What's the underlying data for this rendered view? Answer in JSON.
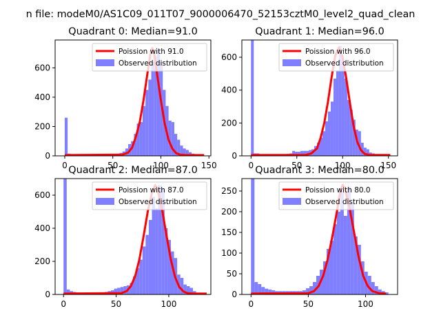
{
  "figure": {
    "suptitle": "n file: modeM0/AS1C09_011T07_9000006470_52153cztM0_level2_quad_clean"
  },
  "colors": {
    "hist": "#7f7fff",
    "fit": "#ff0000",
    "axes": "#000000",
    "background": "#ffffff"
  },
  "chart_data": [
    {
      "type": "bar",
      "title": "Quadrant 0: Median=91.0",
      "median": 91.0,
      "xlim": [
        -10,
        152
      ],
      "ylim": [
        0,
        790
      ],
      "xticks": [
        0,
        50,
        100,
        150
      ],
      "yticks": [
        0,
        200,
        400,
        600
      ],
      "legend": [
        "Poission with 91.0",
        "Observed distribution"
      ],
      "legend_position": "top-right",
      "bin_width": 3,
      "bins": [
        [
          0,
          260
        ],
        [
          3,
          15
        ],
        [
          6,
          10
        ],
        [
          9,
          6
        ],
        [
          12,
          5
        ],
        [
          15,
          5
        ],
        [
          18,
          4
        ],
        [
          21,
          4
        ],
        [
          24,
          4
        ],
        [
          27,
          4
        ],
        [
          30,
          5
        ],
        [
          33,
          5
        ],
        [
          36,
          5
        ],
        [
          39,
          6
        ],
        [
          42,
          6
        ],
        [
          45,
          8
        ],
        [
          48,
          10
        ],
        [
          51,
          12
        ],
        [
          54,
          15
        ],
        [
          57,
          20
        ],
        [
          60,
          30
        ],
        [
          63,
          50
        ],
        [
          66,
          80
        ],
        [
          69,
          100
        ],
        [
          72,
          150
        ],
        [
          75,
          220
        ],
        [
          78,
          230
        ],
        [
          81,
          340
        ],
        [
          84,
          450
        ],
        [
          87,
          520
        ],
        [
          90,
          640
        ],
        [
          93,
          680
        ],
        [
          96,
          720
        ],
        [
          99,
          640
        ],
        [
          102,
          450
        ],
        [
          105,
          340
        ],
        [
          108,
          240
        ],
        [
          111,
          230
        ],
        [
          114,
          150
        ],
        [
          117,
          110
        ],
        [
          120,
          70
        ],
        [
          123,
          50
        ],
        [
          126,
          40
        ],
        [
          129,
          25
        ],
        [
          132,
          15
        ],
        [
          135,
          10
        ],
        [
          138,
          8
        ],
        [
          141,
          5
        ]
      ],
      "fit_curve": [
        [
          0,
          5
        ],
        [
          60,
          8
        ],
        [
          66,
          22
        ],
        [
          70,
          55
        ],
        [
          74,
          130
        ],
        [
          78,
          230
        ],
        [
          82,
          380
        ],
        [
          86,
          560
        ],
        [
          89,
          690
        ],
        [
          91,
          735
        ],
        [
          93,
          700
        ],
        [
          96,
          560
        ],
        [
          100,
          380
        ],
        [
          104,
          220
        ],
        [
          108,
          110
        ],
        [
          112,
          48
        ],
        [
          116,
          18
        ],
        [
          120,
          8
        ],
        [
          126,
          5
        ],
        [
          145,
          5
        ]
      ]
    },
    {
      "type": "bar",
      "title": "Quadrant 1: Median=96.0",
      "median": 96.0,
      "xlim": [
        -10,
        160
      ],
      "ylim": [
        0,
        705
      ],
      "xticks": [
        0,
        50,
        100,
        150
      ],
      "yticks": [
        0,
        200,
        400,
        600
      ],
      "legend": [
        "Poission with 96.0",
        "Observed distribution"
      ],
      "legend_position": "top-right",
      "bin_width": 3,
      "bins": [
        [
          0,
          705
        ],
        [
          3,
          15
        ],
        [
          6,
          15
        ],
        [
          9,
          10
        ],
        [
          12,
          8
        ],
        [
          15,
          8
        ],
        [
          18,
          6
        ],
        [
          21,
          6
        ],
        [
          24,
          6
        ],
        [
          27,
          5
        ],
        [
          30,
          6
        ],
        [
          33,
          8
        ],
        [
          36,
          10
        ],
        [
          39,
          12
        ],
        [
          42,
          15
        ],
        [
          45,
          30
        ],
        [
          48,
          25
        ],
        [
          51,
          25
        ],
        [
          54,
          30
        ],
        [
          57,
          30
        ],
        [
          60,
          30
        ],
        [
          63,
          35
        ],
        [
          66,
          40
        ],
        [
          69,
          60
        ],
        [
          72,
          80
        ],
        [
          75,
          110
        ],
        [
          78,
          150
        ],
        [
          81,
          210
        ],
        [
          84,
          270
        ],
        [
          87,
          330
        ],
        [
          90,
          470
        ],
        [
          93,
          520
        ],
        [
          96,
          670
        ],
        [
          99,
          590
        ],
        [
          102,
          470
        ],
        [
          105,
          340
        ],
        [
          108,
          280
        ],
        [
          111,
          220
        ],
        [
          114,
          160
        ],
        [
          117,
          150
        ],
        [
          120,
          80
        ],
        [
          123,
          50
        ],
        [
          126,
          40
        ],
        [
          129,
          20
        ],
        [
          132,
          15
        ],
        [
          135,
          10
        ],
        [
          138,
          8
        ],
        [
          141,
          5
        ],
        [
          144,
          5
        ],
        [
          147,
          3
        ],
        [
          150,
          3
        ]
      ],
      "fit_curve": [
        [
          0,
          5
        ],
        [
          60,
          6
        ],
        [
          66,
          15
        ],
        [
          72,
          45
        ],
        [
          76,
          110
        ],
        [
          80,
          200
        ],
        [
          84,
          330
        ],
        [
          88,
          480
        ],
        [
          92,
          610
        ],
        [
          96,
          660
        ],
        [
          100,
          600
        ],
        [
          104,
          470
        ],
        [
          108,
          320
        ],
        [
          112,
          180
        ],
        [
          116,
          85
        ],
        [
          120,
          35
        ],
        [
          124,
          12
        ],
        [
          130,
          5
        ],
        [
          152,
          5
        ]
      ]
    },
    {
      "type": "bar",
      "title": "Quadrant 2: Median=87.0",
      "median": 87.0,
      "xlim": [
        -8,
        140
      ],
      "ylim": [
        0,
        700
      ],
      "xticks": [
        0,
        50,
        100
      ],
      "yticks": [
        0,
        200,
        400,
        600
      ],
      "legend": [
        "Poission with 87.0",
        "Observed distribution"
      ],
      "legend_position": "top-right",
      "bin_width": 3,
      "bins": [
        [
          0,
          700
        ],
        [
          3,
          30
        ],
        [
          6,
          20
        ],
        [
          9,
          15
        ],
        [
          12,
          12
        ],
        [
          15,
          10
        ],
        [
          18,
          8
        ],
        [
          21,
          8
        ],
        [
          24,
          8
        ],
        [
          27,
          8
        ],
        [
          30,
          10
        ],
        [
          33,
          12
        ],
        [
          36,
          12
        ],
        [
          39,
          15
        ],
        [
          42,
          20
        ],
        [
          45,
          25
        ],
        [
          48,
          35
        ],
        [
          51,
          40
        ],
        [
          54,
          45
        ],
        [
          57,
          50
        ],
        [
          60,
          55
        ],
        [
          63,
          70
        ],
        [
          66,
          110
        ],
        [
          69,
          160
        ],
        [
          72,
          210
        ],
        [
          75,
          290
        ],
        [
          78,
          360
        ],
        [
          81,
          450
        ],
        [
          84,
          590
        ],
        [
          87,
          520
        ],
        [
          90,
          660
        ],
        [
          93,
          640
        ],
        [
          96,
          400
        ],
        [
          99,
          330
        ],
        [
          102,
          260
        ],
        [
          105,
          220
        ],
        [
          108,
          120
        ],
        [
          111,
          100
        ],
        [
          114,
          60
        ],
        [
          117,
          50
        ],
        [
          120,
          40
        ],
        [
          123,
          20
        ],
        [
          126,
          10
        ],
        [
          129,
          8
        ],
        [
          132,
          5
        ]
      ],
      "fit_curve": [
        [
          0,
          5
        ],
        [
          55,
          8
        ],
        [
          60,
          20
        ],
        [
          64,
          50
        ],
        [
          68,
          110
        ],
        [
          72,
          210
        ],
        [
          76,
          350
        ],
        [
          80,
          500
        ],
        [
          84,
          615
        ],
        [
          87,
          660
        ],
        [
          90,
          620
        ],
        [
          94,
          500
        ],
        [
          98,
          350
        ],
        [
          102,
          210
        ],
        [
          106,
          105
        ],
        [
          110,
          45
        ],
        [
          114,
          18
        ],
        [
          118,
          7
        ],
        [
          124,
          5
        ],
        [
          136,
          5
        ]
      ]
    },
    {
      "type": "bar",
      "title": "Quadrant 3: Median=80.0",
      "median": 80.0,
      "xlim": [
        -8,
        128
      ],
      "ylim": [
        0,
        280
      ],
      "xticks": [
        0,
        50,
        100
      ],
      "yticks": [
        0,
        50,
        100,
        150,
        200,
        250
      ],
      "legend": [
        "Poission with 80.0",
        "Observed distribution"
      ],
      "legend_position": "top-right",
      "bin_width": 3,
      "bins": [
        [
          0,
          280
        ],
        [
          3,
          30
        ],
        [
          6,
          25
        ],
        [
          9,
          18
        ],
        [
          12,
          14
        ],
        [
          15,
          12
        ],
        [
          18,
          10
        ],
        [
          21,
          8
        ],
        [
          24,
          8
        ],
        [
          27,
          8
        ],
        [
          30,
          8
        ],
        [
          33,
          8
        ],
        [
          36,
          8
        ],
        [
          39,
          8
        ],
        [
          42,
          8
        ],
        [
          45,
          10
        ],
        [
          48,
          15
        ],
        [
          51,
          20
        ],
        [
          54,
          30
        ],
        [
          57,
          45
        ],
        [
          60,
          60
        ],
        [
          63,
          80
        ],
        [
          66,
          110
        ],
        [
          69,
          130
        ],
        [
          72,
          170
        ],
        [
          75,
          200
        ],
        [
          78,
          250
        ],
        [
          81,
          190
        ],
        [
          84,
          260
        ],
        [
          87,
          220
        ],
        [
          90,
          140
        ],
        [
          93,
          120
        ],
        [
          96,
          80
        ],
        [
          99,
          55
        ],
        [
          102,
          45
        ],
        [
          105,
          30
        ],
        [
          108,
          20
        ],
        [
          111,
          12
        ],
        [
          114,
          8
        ],
        [
          117,
          5
        ]
      ],
      "fit_curve": [
        [
          0,
          2
        ],
        [
          50,
          3
        ],
        [
          55,
          8
        ],
        [
          59,
          20
        ],
        [
          63,
          45
        ],
        [
          67,
          85
        ],
        [
          71,
          140
        ],
        [
          75,
          200
        ],
        [
          78,
          250
        ],
        [
          80,
          265
        ],
        [
          82,
          255
        ],
        [
          86,
          210
        ],
        [
          90,
          150
        ],
        [
          94,
          90
        ],
        [
          98,
          45
        ],
        [
          102,
          20
        ],
        [
          106,
          8
        ],
        [
          112,
          3
        ],
        [
          118,
          2
        ]
      ]
    }
  ]
}
